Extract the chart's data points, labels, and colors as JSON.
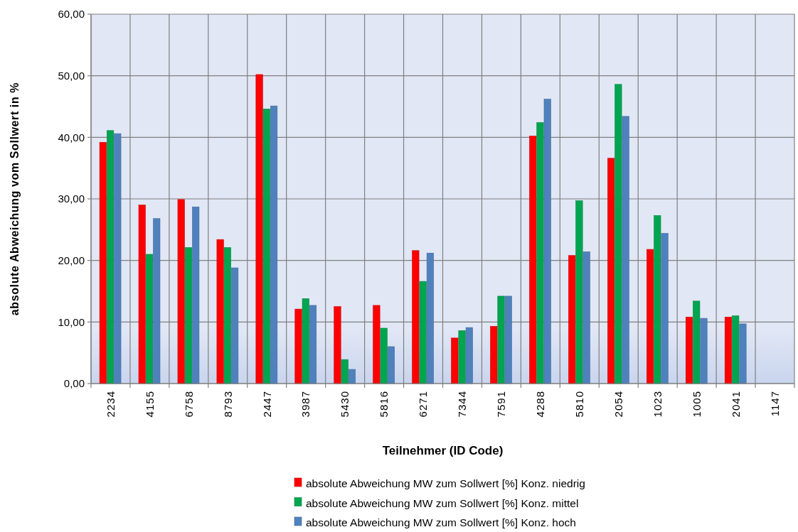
{
  "chart_data": {
    "type": "bar",
    "xlabel": "Teilnehmer (ID Code)",
    "ylabel": "absolute Abweichung vom Sollwert in %",
    "categories": [
      "2234",
      "4155",
      "6758",
      "8793",
      "2447",
      "3987",
      "5430",
      "5816",
      "6271",
      "7344",
      "7591",
      "4288",
      "5810",
      "2054",
      "1023",
      "1005",
      "2041",
      "1147"
    ],
    "series": [
      {
        "name": "absolute Abweichung MW zum Sollwert [%] Konz. niedrig",
        "color": "#ff0000",
        "values": [
          39.2,
          29.0,
          29.9,
          23.4,
          50.2,
          12.1,
          12.5,
          12.7,
          21.6,
          7.4,
          9.3,
          40.2,
          20.8,
          36.6,
          21.8,
          10.8,
          10.8,
          null
        ]
      },
      {
        "name": "absolute Abweichung MW zum Sollwert [%] Konz. mittel",
        "color": "#00a550",
        "values": [
          41.1,
          21.0,
          22.1,
          22.1,
          44.6,
          13.8,
          3.9,
          9.0,
          16.6,
          8.6,
          14.2,
          42.4,
          29.7,
          48.6,
          27.3,
          13.4,
          11.0,
          null
        ]
      },
      {
        "name": "absolute Abweichung MW zum Sollwert [%] Konz. hoch",
        "color": "#4f81bd",
        "values": [
          40.6,
          26.8,
          28.7,
          18.8,
          45.1,
          12.7,
          2.3,
          6.0,
          21.2,
          9.1,
          14.2,
          46.2,
          21.4,
          43.4,
          24.4,
          10.6,
          9.7,
          null
        ]
      }
    ],
    "ylim": [
      0,
      60
    ],
    "yticks": [
      {
        "value": 0,
        "label": "0,00"
      },
      {
        "value": 10,
        "label": "10,00"
      },
      {
        "value": 20,
        "label": "20,00"
      },
      {
        "value": 30,
        "label": "30,00"
      },
      {
        "value": 40,
        "label": "40,00"
      },
      {
        "value": 50,
        "label": "50,00"
      },
      {
        "value": 60,
        "label": "60,00"
      }
    ],
    "grid": true,
    "legend": "bottom"
  }
}
